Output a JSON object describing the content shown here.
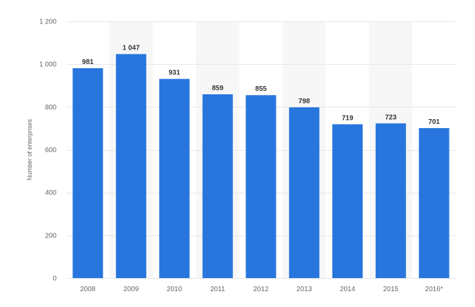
{
  "chart_data": {
    "type": "bar",
    "title": "",
    "xlabel": "",
    "ylabel": "Number of enterprises",
    "categories": [
      "2008",
      "2009",
      "2010",
      "2011",
      "2012",
      "2013",
      "2014",
      "2015",
      "2016*"
    ],
    "values": [
      981,
      1047,
      931,
      859,
      855,
      798,
      719,
      723,
      701
    ],
    "value_labels": [
      "981",
      "1 047",
      "931",
      "859",
      "855",
      "798",
      "719",
      "723",
      "701"
    ],
    "ylim": [
      0,
      1200
    ],
    "yticks": [
      0,
      200,
      400,
      600,
      800,
      1000,
      1200
    ],
    "ytick_labels": [
      "0",
      "200",
      "400",
      "600",
      "800",
      "1 000",
      "1 200"
    ],
    "grid": true,
    "legend": "none",
    "colors": {
      "bar": "#2876dd",
      "grid": "#e6e6e6",
      "band": "#f7f7f7"
    }
  }
}
